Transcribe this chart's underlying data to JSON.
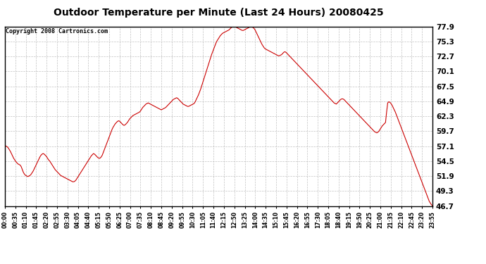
{
  "title": "Outdoor Temperature per Minute (Last 24 Hours) 20080425",
  "copyright_text": "Copyright 2008 Cartronics.com",
  "line_color": "#cc0000",
  "bg_color": "#ffffff",
  "grid_color": "#bbbbbb",
  "yticks": [
    46.7,
    49.3,
    51.9,
    54.5,
    57.1,
    59.7,
    62.3,
    64.9,
    67.5,
    70.1,
    72.7,
    75.3,
    77.9
  ],
  "ymin": 46.7,
  "ymax": 77.9,
  "xtick_labels": [
    "00:00",
    "00:35",
    "01:10",
    "01:45",
    "02:20",
    "02:55",
    "03:30",
    "04:05",
    "04:40",
    "05:15",
    "05:50",
    "06:25",
    "07:00",
    "07:35",
    "08:10",
    "08:45",
    "09:20",
    "09:55",
    "10:30",
    "11:05",
    "11:40",
    "12:15",
    "12:50",
    "13:25",
    "14:00",
    "14:35",
    "15:10",
    "15:45",
    "16:20",
    "16:55",
    "17:30",
    "18:05",
    "18:40",
    "19:15",
    "19:50",
    "20:25",
    "21:00",
    "21:35",
    "22:10",
    "22:45",
    "23:20",
    "23:55"
  ],
  "temperature_data": [
    57.2,
    57.1,
    57.0,
    56.8,
    56.5,
    56.2,
    55.8,
    55.4,
    55.0,
    54.7,
    54.4,
    54.2,
    54.0,
    53.9,
    53.8,
    53.5,
    53.0,
    52.5,
    52.2,
    52.0,
    51.9,
    51.8,
    51.9,
    52.0,
    52.2,
    52.5,
    52.8,
    53.2,
    53.6,
    54.0,
    54.4,
    54.8,
    55.2,
    55.5,
    55.7,
    55.8,
    55.7,
    55.5,
    55.3,
    55.0,
    54.7,
    54.5,
    54.2,
    53.9,
    53.6,
    53.3,
    53.0,
    52.8,
    52.6,
    52.4,
    52.2,
    52.0,
    51.9,
    51.8,
    51.7,
    51.6,
    51.5,
    51.4,
    51.3,
    51.2,
    51.1,
    51.0,
    50.9,
    50.9,
    51.0,
    51.2,
    51.5,
    51.8,
    52.1,
    52.4,
    52.7,
    53.0,
    53.3,
    53.6,
    53.9,
    54.2,
    54.5,
    54.8,
    55.1,
    55.4,
    55.6,
    55.8,
    55.7,
    55.5,
    55.3,
    55.1,
    55.0,
    55.0,
    55.2,
    55.5,
    56.0,
    56.5,
    57.0,
    57.5,
    58.0,
    58.5,
    59.0,
    59.5,
    60.0,
    60.4,
    60.7,
    61.0,
    61.2,
    61.4,
    61.5,
    61.4,
    61.2,
    61.0,
    60.8,
    60.7,
    60.8,
    61.0,
    61.2,
    61.5,
    61.8,
    62.0,
    62.2,
    62.4,
    62.5,
    62.6,
    62.7,
    62.8,
    62.9,
    63.0,
    63.2,
    63.5,
    63.8,
    64.0,
    64.2,
    64.4,
    64.5,
    64.6,
    64.5,
    64.4,
    64.3,
    64.2,
    64.1,
    64.0,
    63.9,
    63.8,
    63.7,
    63.6,
    63.5,
    63.4,
    63.5,
    63.6,
    63.7,
    63.8,
    64.0,
    64.2,
    64.4,
    64.6,
    64.8,
    65.0,
    65.2,
    65.3,
    65.4,
    65.5,
    65.4,
    65.2,
    65.0,
    64.8,
    64.6,
    64.4,
    64.3,
    64.2,
    64.1,
    64.0,
    64.0,
    64.1,
    64.2,
    64.3,
    64.4,
    64.5,
    64.8,
    65.2,
    65.6,
    66.0,
    66.5,
    67.0,
    67.6,
    68.2,
    68.8,
    69.4,
    70.0,
    70.6,
    71.2,
    71.8,
    72.4,
    73.0,
    73.5,
    74.0,
    74.5,
    75.0,
    75.4,
    75.7,
    76.0,
    76.3,
    76.5,
    76.7,
    76.8,
    76.9,
    77.0,
    77.1,
    77.2,
    77.3,
    77.5,
    77.7,
    77.8,
    77.9,
    77.9,
    77.8,
    77.7,
    77.6,
    77.5,
    77.4,
    77.3,
    77.2,
    77.2,
    77.3,
    77.4,
    77.5,
    77.6,
    77.7,
    77.8,
    77.9,
    77.8,
    77.7,
    77.5,
    77.2,
    76.8,
    76.4,
    76.0,
    75.6,
    75.2,
    74.8,
    74.5,
    74.2,
    74.0,
    73.9,
    73.8,
    73.7,
    73.6,
    73.5,
    73.4,
    73.3,
    73.2,
    73.1,
    73.0,
    72.9,
    72.8,
    72.8,
    72.9,
    73.0,
    73.2,
    73.4,
    73.5,
    73.4,
    73.2,
    73.0,
    72.8,
    72.6,
    72.4,
    72.2,
    72.0,
    71.8,
    71.6,
    71.4,
    71.2,
    71.0,
    70.8,
    70.6,
    70.4,
    70.2,
    70.0,
    69.8,
    69.6,
    69.4,
    69.2,
    69.0,
    68.8,
    68.6,
    68.4,
    68.2,
    68.0,
    67.8,
    67.6,
    67.4,
    67.2,
    67.0,
    66.8,
    66.6,
    66.4,
    66.2,
    66.0,
    65.8,
    65.6,
    65.4,
    65.2,
    65.0,
    64.8,
    64.6,
    64.5,
    64.4,
    64.6,
    64.8,
    65.0,
    65.2,
    65.3,
    65.3,
    65.2,
    65.0,
    64.8,
    64.6,
    64.4,
    64.2,
    64.0,
    63.8,
    63.6,
    63.4,
    63.2,
    63.0,
    62.8,
    62.6,
    62.4,
    62.2,
    62.0,
    61.8,
    61.6,
    61.4,
    61.2,
    61.0,
    60.8,
    60.6,
    60.4,
    60.2,
    60.0,
    59.8,
    59.6,
    59.5,
    59.4,
    59.5,
    59.7,
    60.0,
    60.3,
    60.6,
    60.8,
    61.0,
    61.2,
    63.0,
    64.6,
    64.8,
    64.7,
    64.5,
    64.2,
    63.8,
    63.4,
    63.0,
    62.5,
    62.0,
    61.5,
    61.0,
    60.5,
    60.0,
    59.5,
    59.0,
    58.5,
    58.0,
    57.5,
    57.0,
    56.5,
    56.0,
    55.5,
    55.0,
    54.5,
    54.0,
    53.5,
    53.0,
    52.5,
    52.0,
    51.5,
    51.0,
    50.5,
    50.0,
    49.5,
    49.0,
    48.5,
    48.0,
    47.5,
    47.2,
    46.9,
    46.7
  ]
}
